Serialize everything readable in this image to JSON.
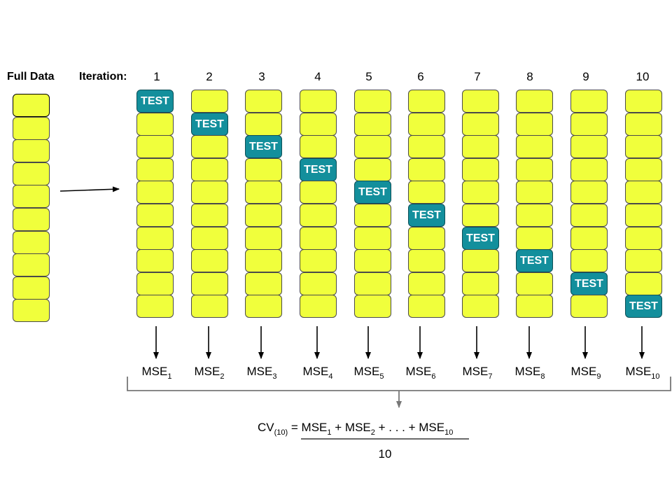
{
  "full_data_label": "Full Data",
  "iteration_label": "Iteration:",
  "test_label": "TEST",
  "iterations": [
    {
      "number": "1",
      "mse_label": "MSE",
      "mse_sub": "1"
    },
    {
      "number": "2",
      "mse_label": "MSE",
      "mse_sub": "2"
    },
    {
      "number": "3",
      "mse_label": "MSE",
      "mse_sub": "3"
    },
    {
      "number": "4",
      "mse_label": "MSE",
      "mse_sub": "4"
    },
    {
      "number": "5",
      "mse_label": "MSE",
      "mse_sub": "5"
    },
    {
      "number": "6",
      "mse_label": "MSE",
      "mse_sub": "6"
    },
    {
      "number": "7",
      "mse_label": "MSE",
      "mse_sub": "7"
    },
    {
      "number": "8",
      "mse_label": "MSE",
      "mse_sub": "8"
    },
    {
      "number": "9",
      "mse_label": "MSE",
      "mse_sub": "9"
    },
    {
      "number": "10",
      "mse_label": "MSE",
      "mse_sub": "10"
    }
  ],
  "formula": {
    "cv": "CV",
    "cv_sub": "(10)",
    "equals": " = MSE",
    "sub1": "1",
    "plus1": " + MSE",
    "sub2": "2",
    "ellipsis": " + . . . + MSE",
    "sub3": "10",
    "denominator": "10"
  },
  "colors": {
    "fold": "#f0ff3c",
    "test_fold": "#138f9c",
    "test_text": "#ffffff",
    "bracket": "#777777"
  }
}
